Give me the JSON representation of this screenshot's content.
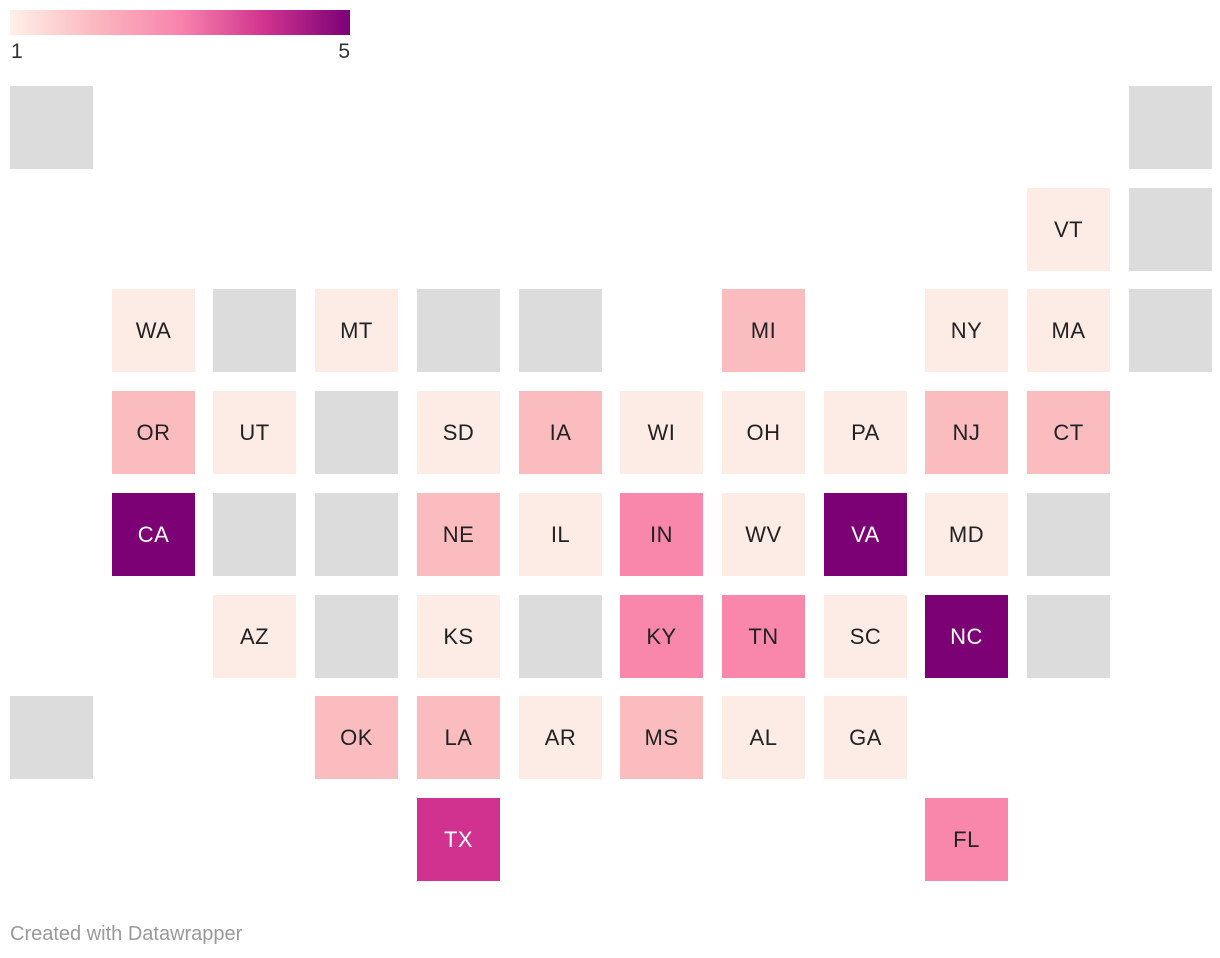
{
  "legend": {
    "min_label": "1",
    "max_label": "5",
    "gradient_stops": [
      "#fff0e8",
      "#fbb8c0",
      "#f883ad",
      "#d0338e",
      "#7a0177"
    ]
  },
  "colors": {
    "1": "#fdece5",
    "2": "#fbbcc0",
    "3": "#f887ab",
    "4": "#d1328f",
    "5": "#7b0174",
    "none": "#dcdcdc"
  },
  "map": {
    "tiles": [
      {
        "abbr": "",
        "row": 0,
        "col": 0,
        "level": null
      },
      {
        "abbr": "",
        "row": 0,
        "col": 11,
        "level": null
      },
      {
        "abbr": "VT",
        "row": 1,
        "col": 10,
        "level": 1
      },
      {
        "abbr": "",
        "row": 1,
        "col": 11,
        "level": null
      },
      {
        "abbr": "WA",
        "row": 2,
        "col": 1,
        "level": 1
      },
      {
        "abbr": "",
        "row": 2,
        "col": 2,
        "level": null
      },
      {
        "abbr": "MT",
        "row": 2,
        "col": 3,
        "level": 1
      },
      {
        "abbr": "",
        "row": 2,
        "col": 4,
        "level": null
      },
      {
        "abbr": "",
        "row": 2,
        "col": 5,
        "level": null
      },
      {
        "abbr": "MI",
        "row": 2,
        "col": 7,
        "level": 2
      },
      {
        "abbr": "NY",
        "row": 2,
        "col": 9,
        "level": 1
      },
      {
        "abbr": "MA",
        "row": 2,
        "col": 10,
        "level": 1
      },
      {
        "abbr": "",
        "row": 2,
        "col": 11,
        "level": null
      },
      {
        "abbr": "OR",
        "row": 3,
        "col": 1,
        "level": 2
      },
      {
        "abbr": "UT",
        "row": 3,
        "col": 2,
        "level": 1
      },
      {
        "abbr": "",
        "row": 3,
        "col": 3,
        "level": null
      },
      {
        "abbr": "SD",
        "row": 3,
        "col": 4,
        "level": 1
      },
      {
        "abbr": "IA",
        "row": 3,
        "col": 5,
        "level": 2
      },
      {
        "abbr": "WI",
        "row": 3,
        "col": 6,
        "level": 1
      },
      {
        "abbr": "OH",
        "row": 3,
        "col": 7,
        "level": 1
      },
      {
        "abbr": "PA",
        "row": 3,
        "col": 8,
        "level": 1
      },
      {
        "abbr": "NJ",
        "row": 3,
        "col": 9,
        "level": 2
      },
      {
        "abbr": "CT",
        "row": 3,
        "col": 10,
        "level": 2
      },
      {
        "abbr": "CA",
        "row": 4,
        "col": 1,
        "level": 5
      },
      {
        "abbr": "",
        "row": 4,
        "col": 2,
        "level": null
      },
      {
        "abbr": "",
        "row": 4,
        "col": 3,
        "level": null
      },
      {
        "abbr": "NE",
        "row": 4,
        "col": 4,
        "level": 2
      },
      {
        "abbr": "IL",
        "row": 4,
        "col": 5,
        "level": 1
      },
      {
        "abbr": "IN",
        "row": 4,
        "col": 6,
        "level": 3
      },
      {
        "abbr": "WV",
        "row": 4,
        "col": 7,
        "level": 1
      },
      {
        "abbr": "VA",
        "row": 4,
        "col": 8,
        "level": 5
      },
      {
        "abbr": "MD",
        "row": 4,
        "col": 9,
        "level": 1
      },
      {
        "abbr": "",
        "row": 4,
        "col": 10,
        "level": null
      },
      {
        "abbr": "AZ",
        "row": 5,
        "col": 2,
        "level": 1
      },
      {
        "abbr": "",
        "row": 5,
        "col": 3,
        "level": null
      },
      {
        "abbr": "KS",
        "row": 5,
        "col": 4,
        "level": 1
      },
      {
        "abbr": "",
        "row": 5,
        "col": 5,
        "level": null
      },
      {
        "abbr": "KY",
        "row": 5,
        "col": 6,
        "level": 3
      },
      {
        "abbr": "TN",
        "row": 5,
        "col": 7,
        "level": 3
      },
      {
        "abbr": "SC",
        "row": 5,
        "col": 8,
        "level": 1
      },
      {
        "abbr": "NC",
        "row": 5,
        "col": 9,
        "level": 5
      },
      {
        "abbr": "",
        "row": 5,
        "col": 10,
        "level": null
      },
      {
        "abbr": "",
        "row": 6,
        "col": 0,
        "level": null
      },
      {
        "abbr": "OK",
        "row": 6,
        "col": 3,
        "level": 2
      },
      {
        "abbr": "LA",
        "row": 6,
        "col": 4,
        "level": 2
      },
      {
        "abbr": "AR",
        "row": 6,
        "col": 5,
        "level": 1
      },
      {
        "abbr": "MS",
        "row": 6,
        "col": 6,
        "level": 2
      },
      {
        "abbr": "AL",
        "row": 6,
        "col": 7,
        "level": 1
      },
      {
        "abbr": "GA",
        "row": 6,
        "col": 8,
        "level": 1
      },
      {
        "abbr": "TX",
        "row": 7,
        "col": 4,
        "level": 4
      },
      {
        "abbr": "FL",
        "row": 7,
        "col": 9,
        "level": 3
      }
    ]
  },
  "footer": {
    "credit": "Created with Datawrapper"
  }
}
